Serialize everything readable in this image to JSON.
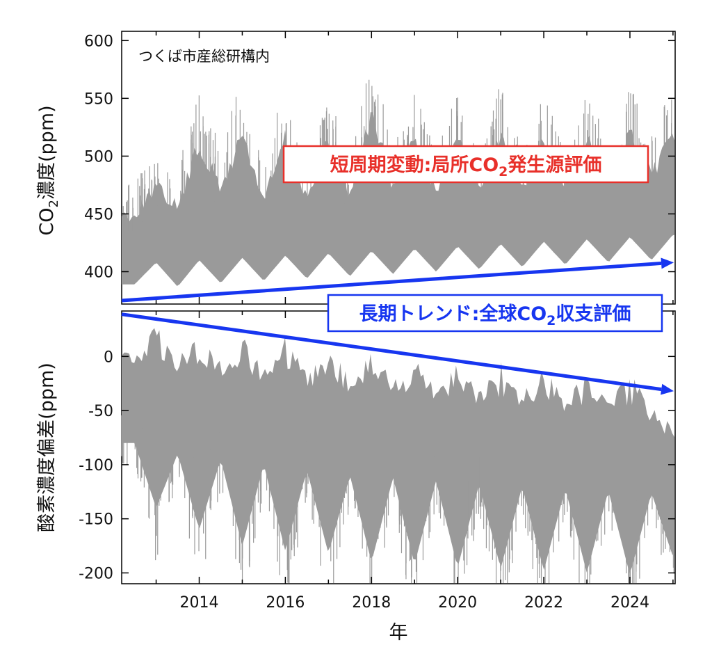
{
  "chart_data": [
    {
      "type": "line",
      "panel": "top",
      "ylabel": "CO₂濃度(ppm)",
      "ylabel_parts": {
        "pre": "CO",
        "sub": "2",
        "post": "濃度(ppm)"
      },
      "ylim": [
        372,
        608
      ],
      "yticks": [
        400,
        450,
        500,
        550,
        600
      ],
      "xlim": [
        2012.2,
        2025.05
      ],
      "location_note": "つくば市産総研構内",
      "series": [
        {
          "color": "#9a9a9a",
          "x": [
            2012.5,
            2013,
            2013.5,
            2014,
            2014.5,
            2015,
            2015.5,
            2016,
            2016.5,
            2017,
            2017.5,
            2018,
            2018.5,
            2019,
            2019.5,
            2020,
            2020.5,
            2021,
            2021.5,
            2022,
            2022.5,
            2023,
            2023.5,
            2024,
            2024.5,
            2025
          ],
          "baseline": [
            389,
            408,
            387,
            410,
            390,
            412,
            392,
            414,
            394,
            416,
            396,
            418,
            398,
            420,
            400,
            422,
            402,
            424,
            404,
            426,
            406,
            428,
            408,
            430,
            410,
            432
          ],
          "peak": [
            455,
            480,
            462,
            520,
            478,
            530,
            468,
            525,
            470,
            520,
            472,
            548,
            480,
            525,
            478,
            522,
            476,
            528,
            480,
            522,
            482,
            522,
            486,
            528,
            490,
            530
          ]
        }
      ],
      "annotation": {
        "text_parts": {
          "pre": "短周期変動:局所CO",
          "sub": "2",
          "post": "発生源評価"
        },
        "color": "#e8302a"
      },
      "trend_arrow": {
        "color": "#1736f0",
        "y_start": 375,
        "y_end": 408
      }
    },
    {
      "type": "line",
      "panel": "bottom",
      "xlabel": "年",
      "ylabel": "酸素濃度偏差(ppm)",
      "ylim": [
        -210,
        42
      ],
      "yticks": [
        -200,
        -150,
        -100,
        -50,
        0
      ],
      "xlim": [
        2012.2,
        2025.05
      ],
      "xticks": [
        2014,
        2016,
        2018,
        2020,
        2022,
        2024
      ],
      "series": [
        {
          "color": "#9a9a9a",
          "x": [
            2012.5,
            2013,
            2013.5,
            2014,
            2014.5,
            2015,
            2015.5,
            2016,
            2016.5,
            2017,
            2017.5,
            2018,
            2018.5,
            2019,
            2019.5,
            2020,
            2020.5,
            2021,
            2021.5,
            2022,
            2022.5,
            2023,
            2023.5,
            2024,
            2024.5,
            2025
          ],
          "top": [
            5,
            30,
            0,
            25,
            -5,
            22,
            -10,
            18,
            -15,
            14,
            -18,
            10,
            -22,
            6,
            -26,
            2,
            -30,
            -2,
            -34,
            -6,
            -38,
            -10,
            -42,
            -14,
            -46,
            -55
          ],
          "bottom": [
            -80,
            -140,
            -90,
            -160,
            -95,
            -175,
            -100,
            -180,
            -105,
            -182,
            -110,
            -190,
            -112,
            -192,
            -115,
            -195,
            -118,
            -196,
            -120,
            -198,
            -122,
            -200,
            -124,
            -202,
            -126,
            -185
          ]
        }
      ],
      "annotation": {
        "text_parts": {
          "pre": "長期トレンド:全球CO",
          "sub": "2",
          "post": "収支評価"
        },
        "color": "#1736f0"
      },
      "trend_arrow": {
        "color": "#1736f0",
        "y_start": 39,
        "y_end": -32
      }
    }
  ]
}
